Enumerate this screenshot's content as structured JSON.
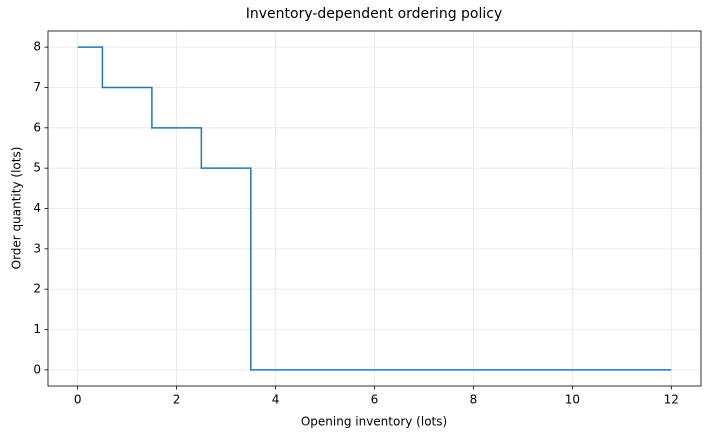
{
  "chart_data": {
    "type": "line",
    "step": "mid",
    "title": "Inventory-dependent ordering policy",
    "x_label": "Opening inventory (lots)",
    "y_label": "Order quantity (lots)",
    "x": [
      0,
      1,
      2,
      3,
      4,
      5,
      6,
      7,
      8,
      9,
      10,
      11,
      12
    ],
    "series": [
      {
        "name": "Order quantity",
        "color": "#1f77b4",
        "values": [
          8,
          7,
          6,
          5,
          0,
          0,
          0,
          0,
          0,
          0,
          0,
          0,
          0
        ]
      }
    ],
    "xlim": [
      -0.6,
      12.6
    ],
    "xticks": [
      0,
      2,
      4,
      6,
      8,
      10,
      12
    ],
    "ylim": [
      -0.4,
      8.4
    ],
    "yticks": [
      0,
      1,
      2,
      3,
      4,
      5,
      6,
      7,
      8
    ],
    "grid": true
  }
}
